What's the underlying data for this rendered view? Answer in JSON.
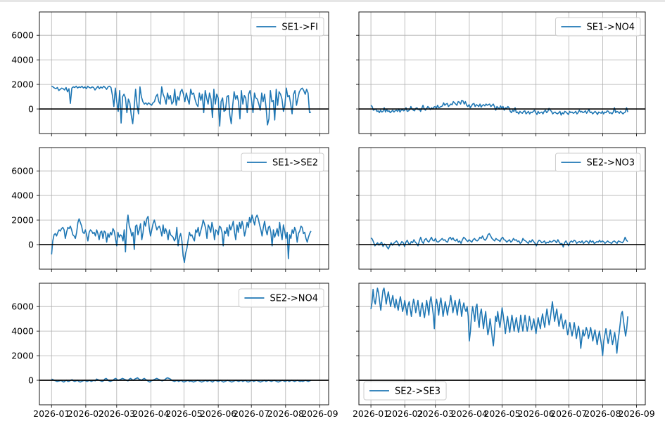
{
  "figure": {
    "series_color": "#1f77b4",
    "zero_line_color": "#000000",
    "grid": true
  },
  "x_ticks": [
    "2026-01",
    "2026-02",
    "2026-03",
    "2026-04",
    "2026-05",
    "2026-06",
    "2026-07",
    "2026-08",
    "2026-09"
  ],
  "y_ticks": [
    "0",
    "2000",
    "4000",
    "6000"
  ],
  "chart_data": [
    {
      "type": "line",
      "name": "SE1->FI",
      "legend": "upper right",
      "xlim": [
        "2025-12-21",
        "2026-09-09"
      ],
      "ylim": [
        -2000,
        7900
      ],
      "grid": true,
      "x_start": "2026-01-01",
      "x_end": "2026-08-24",
      "values": [
        1850,
        1800,
        1700,
        1650,
        1750,
        1500,
        1600,
        1700,
        1650,
        1550,
        1750,
        1400,
        1650,
        450,
        1700,
        1800,
        1750,
        1850,
        1700,
        1800,
        1750,
        1850,
        1700,
        1800,
        1650,
        1850,
        1750,
        1700,
        1800,
        1750,
        1550,
        1700,
        1850,
        1650,
        1800,
        1700,
        1850,
        1750,
        1600,
        1800,
        1850,
        1750,
        1100,
        200,
        1700,
        600,
        -200,
        1500,
        -1150,
        1000,
        1200,
        900,
        -300,
        800,
        500,
        -500,
        -1200,
        100,
        1600,
        300,
        -400,
        1800,
        1000,
        600,
        400,
        500,
        350,
        500,
        400,
        300,
        500,
        600,
        1000,
        1200,
        600,
        400,
        1800,
        1200,
        900,
        400,
        1300,
        800,
        1100,
        400,
        600,
        1600,
        300,
        1000,
        700,
        1400,
        1600,
        1200,
        600,
        1300,
        800,
        400,
        1600,
        1200,
        1300,
        800,
        400,
        200,
        1300,
        700,
        1200,
        -300,
        1500,
        900,
        400,
        1300,
        800,
        -700,
        1600,
        400,
        1200,
        900,
        -1400,
        600,
        900,
        -200,
        -100,
        1000,
        1100,
        -500,
        -1200,
        300,
        1400,
        800,
        1100,
        600,
        -800,
        1500,
        400,
        1100,
        900,
        -300,
        1200,
        1500,
        700,
        -300,
        1300,
        900,
        800,
        400,
        -100,
        1300,
        600,
        1200,
        100,
        -1300,
        -800,
        1500,
        600,
        700,
        -900,
        1600,
        300,
        1400,
        1200,
        800,
        -200,
        300,
        1700,
        1000,
        1100,
        400,
        -400,
        1200,
        1500,
        300,
        900,
        1400,
        1600,
        1700,
        1500,
        1200,
        1600,
        1300,
        -300,
        -250
      ]
    },
    {
      "type": "line",
      "name": "SE1->NO4",
      "legend": "upper right",
      "xlim": [
        "2025-12-21",
        "2026-09-09"
      ],
      "ylim": [
        -2000,
        7900
      ],
      "grid": true,
      "x_start": "2026-01-01",
      "x_end": "2026-08-24",
      "values": [
        300,
        200,
        -100,
        -50,
        0,
        -200,
        -150,
        -300,
        -100,
        -250,
        -200,
        100,
        -250,
        -50,
        -200,
        -150,
        -300,
        -200,
        -100,
        -250,
        -150,
        -100,
        -200,
        0,
        -250,
        -100,
        -50,
        -150,
        -100,
        100,
        -200,
        -150,
        -50,
        200,
        0,
        -100,
        -150,
        50,
        100,
        -50,
        0,
        -200,
        50,
        300,
        0,
        -100,
        50,
        200,
        100,
        -50,
        100,
        0,
        150,
        200,
        50,
        300,
        100,
        150,
        200,
        250,
        500,
        300,
        400,
        450,
        200,
        300,
        400,
        350,
        600,
        500,
        400,
        300,
        600,
        550,
        400,
        700,
        650,
        400,
        600,
        300,
        200,
        350,
        100,
        250,
        400,
        450,
        200,
        350,
        300,
        200,
        400,
        150,
        300,
        350,
        250,
        400,
        300,
        350,
        400,
        200,
        300,
        400,
        200,
        -100,
        200,
        100,
        0,
        250,
        50,
        200,
        -100,
        100,
        50,
        200,
        100,
        -200,
        -300,
        -100,
        -200,
        100,
        -300,
        -250,
        -400,
        -200,
        -300,
        -350,
        -200,
        -150,
        -400,
        -300,
        -200,
        -400,
        -250,
        -300,
        -200,
        -100,
        -300,
        -450,
        -200,
        -350,
        -300,
        -250,
        -400,
        -200,
        -100,
        -300,
        -200,
        50,
        -100,
        -200,
        -400,
        -300,
        -250,
        -350,
        -400,
        -300,
        -200,
        -500,
        -300,
        -400,
        -200,
        -250,
        -350,
        -450,
        -200,
        -300,
        -250,
        -350,
        -300,
        -200,
        -400,
        -300,
        -100,
        -250,
        -200,
        -300,
        -250,
        -150,
        -350,
        -200,
        -50,
        -300,
        -250,
        -400,
        -300,
        -200,
        -300,
        -450,
        -250,
        -300,
        -350,
        -200,
        -400,
        -250,
        -300,
        -150,
        -200,
        -350,
        -300,
        -400,
        -250,
        100,
        -300,
        -200,
        -250,
        -350,
        -200,
        -300,
        -400,
        -300,
        -250,
        100,
        -250
      ]
    },
    {
      "type": "line",
      "name": "SE1->SE2",
      "legend": "upper right",
      "xlim": [
        "2025-12-21",
        "2026-09-09"
      ],
      "ylim": [
        -2000,
        7900
      ],
      "grid": true,
      "x_start": "2026-01-01",
      "x_end": "2026-08-24",
      "values": [
        -800,
        300,
        800,
        900,
        700,
        1000,
        1200,
        1100,
        1300,
        1400,
        1200,
        500,
        1000,
        1400,
        1300,
        1500,
        1200,
        800,
        700,
        500,
        1000,
        1800,
        2100,
        1800,
        1500,
        1000,
        900,
        1200,
        800,
        300,
        1000,
        1200,
        1100,
        900,
        1000,
        700,
        1200,
        900,
        400,
        1000,
        1100,
        500,
        1100,
        1000,
        200,
        900,
        600,
        1000,
        800,
        1300,
        1100,
        500,
        -100,
        1000,
        600,
        800,
        700,
        300,
        1200,
        -600,
        1600,
        2400,
        1500,
        1200,
        700,
        1000,
        -400,
        1500,
        1600,
        800,
        1200,
        1700,
        400,
        1000,
        1900,
        1500,
        2100,
        2300,
        1300,
        700,
        1200,
        1700,
        2000,
        1600,
        1200,
        1400,
        1500,
        1200,
        700,
        1600,
        900,
        1300,
        1000,
        400,
        1200,
        800,
        700,
        600,
        300,
        500,
        1400,
        -100,
        600,
        900,
        300,
        -900,
        -1450,
        -700,
        -300,
        400,
        1000,
        700,
        800,
        500,
        300,
        1200,
        1000,
        1400,
        700,
        1100,
        1500,
        2000,
        1700,
        1300,
        500,
        1600,
        1400,
        1000,
        1800,
        1300,
        400,
        1200,
        1100,
        800,
        1500,
        1400,
        1000,
        -100,
        1100,
        900,
        1400,
        700,
        1600,
        1200,
        1500,
        1900,
        1000,
        400,
        1600,
        1000,
        1800,
        1300,
        1900,
        1500,
        700,
        1200,
        1800,
        1400,
        2200,
        1800,
        2400,
        2000,
        1600,
        2200,
        2400,
        2100,
        1600,
        1200,
        700,
        1400,
        1900,
        1200,
        800,
        1400,
        1500,
        1000,
        -100,
        1200,
        600,
        900,
        1300,
        700,
        1800,
        1000,
        400,
        1600,
        1100,
        500,
        1000,
        -1150,
        800,
        500,
        1200,
        900,
        1400,
        1100,
        200,
        900,
        1100,
        1500,
        1400,
        900,
        1000,
        500,
        200,
        600,
        900,
        1100
      ]
    },
    {
      "type": "line",
      "name": "SE2->NO3",
      "legend": "upper right",
      "xlim": [
        "2025-12-21",
        "2026-09-09"
      ],
      "ylim": [
        -2000,
        7900
      ],
      "grid": true,
      "x_start": "2026-01-01",
      "x_end": "2026-08-24",
      "values": [
        550,
        450,
        200,
        -100,
        50,
        150,
        -50,
        100,
        200,
        -150,
        50,
        0,
        -200,
        -350,
        -100,
        150,
        -50,
        100,
        200,
        300,
        150,
        -100,
        50,
        250,
        150,
        -150,
        200,
        350,
        100,
        0,
        250,
        150,
        400,
        200,
        100,
        -100,
        300,
        600,
        250,
        100,
        400,
        500,
        300,
        200,
        400,
        600,
        350,
        300,
        500,
        250,
        200,
        300,
        400,
        500,
        350,
        400,
        250,
        200,
        500,
        600,
        400,
        550,
        350,
        300,
        450,
        200,
        300,
        100,
        400,
        600,
        500,
        350,
        250,
        400,
        300,
        200,
        400,
        500,
        350,
        300,
        400,
        600,
        500,
        700,
        450,
        350,
        500,
        800,
        900,
        700,
        500,
        400,
        300,
        500,
        400,
        350,
        250,
        500,
        600,
        400,
        350,
        200,
        300,
        400,
        200,
        300,
        500,
        350,
        400,
        250,
        300,
        100,
        200,
        500,
        350,
        300,
        200,
        100,
        300,
        200,
        400,
        250,
        100,
        -100,
        200,
        350,
        300,
        150,
        200,
        300,
        100,
        200,
        150,
        300,
        200,
        250,
        350,
        300,
        150,
        400,
        200,
        50,
        100,
        -200,
        150,
        300,
        100,
        -100,
        200,
        300,
        200,
        350,
        300,
        100,
        200,
        250,
        150,
        300,
        100,
        200,
        300,
        250,
        100,
        350,
        200,
        300,
        100,
        150,
        250,
        200,
        350,
        200,
        300,
        250,
        100,
        200,
        300,
        200,
        150,
        100,
        250,
        300,
        200,
        100,
        300,
        250,
        200,
        150,
        300,
        600,
        350,
        250
      ]
    },
    {
      "type": "line",
      "name": "SE2->NO4",
      "legend": "upper right",
      "xlim": [
        "2025-12-21",
        "2026-09-09"
      ],
      "ylim": [
        -2000,
        7900
      ],
      "grid": true,
      "x_start": "2026-01-01",
      "x_end": "2026-08-24",
      "values": [
        100,
        50,
        0,
        -50,
        -100,
        -80,
        -50,
        0,
        -100,
        -150,
        -50,
        0,
        -100,
        -80,
        0,
        50,
        -50,
        -100,
        -50,
        0,
        -100,
        -150,
        -100,
        -50,
        0,
        -50,
        -100,
        -50,
        0,
        -100,
        -50,
        0,
        -50,
        100,
        50,
        0,
        -50,
        -100,
        -50,
        100,
        150,
        50,
        -50,
        -100,
        -50,
        0,
        100,
        150,
        50,
        0,
        50,
        100,
        150,
        100,
        50,
        0,
        -50,
        100,
        150,
        50,
        0,
        100,
        150,
        200,
        100,
        50,
        0,
        100,
        150,
        50,
        0,
        -100,
        -150,
        -50,
        0,
        50,
        100,
        150,
        100,
        50,
        0,
        -50,
        0,
        50,
        150,
        200,
        150,
        100,
        0,
        -50,
        -100,
        -50,
        0,
        -100,
        -50,
        0,
        -100,
        -150,
        -100,
        -50,
        0,
        -100,
        -50,
        -100,
        -150,
        -100,
        -50,
        0,
        -50,
        -100,
        -150,
        -100,
        -50,
        0,
        -100,
        -50,
        0,
        -100,
        -150,
        -50,
        0,
        -50,
        -100,
        -50,
        0,
        -100,
        -150,
        -100,
        -50,
        0,
        -50,
        -100,
        -150,
        -100,
        -50,
        0,
        -50,
        -100,
        -50,
        0,
        -100,
        -50,
        0,
        -100,
        -150,
        -100,
        -50,
        0,
        -100,
        -50,
        0,
        -50,
        -100,
        -150,
        -100,
        -50,
        0,
        -100,
        -50,
        0,
        -50,
        -100,
        -50,
        0,
        -50,
        -100,
        -150,
        -100,
        -50,
        0,
        -50,
        -100,
        -50,
        0,
        -100,
        -50,
        0,
        -50,
        -100,
        -50,
        0,
        -50,
        -100,
        -50,
        -100,
        -50,
        0,
        -50,
        -100,
        -50,
        0
      ]
    },
    {
      "type": "line",
      "name": "SE2->SE3",
      "legend": "lower left",
      "xlim": [
        "2025-12-21",
        "2026-09-09"
      ],
      "ylim": [
        -2000,
        7900
      ],
      "grid": true,
      "x_start": "2026-01-01",
      "x_end": "2026-08-24",
      "values": [
        5800,
        6300,
        7400,
        6500,
        6200,
        6900,
        7500,
        7100,
        6400,
        5700,
        6500,
        7300,
        7500,
        6900,
        6200,
        6800,
        7200,
        6600,
        6000,
        6500,
        6900,
        6300,
        5900,
        6600,
        6100,
        5700,
        6400,
        6800,
        6200,
        5600,
        6000,
        6500,
        5900,
        5300,
        6100,
        6400,
        5800,
        5200,
        6000,
        6600,
        6200,
        5500,
        6000,
        6500,
        5700,
        5200,
        5900,
        6300,
        5600,
        5100,
        5800,
        6500,
        5900,
        5300,
        6400,
        6800,
        6100,
        5400,
        4200,
        6000,
        6600,
        6100,
        5300,
        6200,
        6700,
        6000,
        5200,
        5800,
        6400,
        5900,
        5300,
        5900,
        6200,
        6900,
        6300,
        5500,
        6000,
        6500,
        5900,
        5300,
        6100,
        6600,
        6000,
        5200,
        5900,
        6300,
        5800,
        5600,
        6000,
        5200,
        3200,
        4000,
        5200,
        6000,
        5500,
        4800,
        5900,
        6200,
        5000,
        4300,
        5400,
        5800,
        5000,
        4200,
        5000,
        5600,
        4500,
        3700,
        4200,
        5000,
        4300,
        3500,
        2800,
        3800,
        5200,
        4800,
        5600,
        4900,
        4300,
        5000,
        5900,
        5300,
        4600,
        3800,
        4600,
        5200,
        4500,
        3900,
        4600,
        5300,
        4700,
        4000,
        4600,
        5100,
        4500,
        3900,
        4400,
        5300,
        4600,
        4000,
        4700,
        5300,
        4600,
        4000,
        4500,
        5200,
        4700,
        4100,
        4500,
        5000,
        4400,
        3800,
        4500,
        5100,
        4600,
        4200,
        4900,
        5400,
        4800,
        4300,
        5100,
        5800,
        5200,
        4500,
        5000,
        5700,
        6400,
        5600,
        4800,
        5300,
        5800,
        5100,
        4400,
        4900,
        5400,
        4800,
        4200,
        4600,
        4900,
        4300,
        3700,
        4200,
        4700,
        4100,
        3600,
        4100,
        4700,
        4100,
        3400,
        4000,
        4400,
        3800,
        2600,
        3400,
        4100,
        3600,
        3800,
        4300,
        4000,
        3400,
        3800,
        4300,
        3800,
        3200,
        3700,
        4100,
        3500,
        2900,
        3500,
        4000,
        3400,
        2800,
        2000,
        3200,
        3700,
        4200,
        3600,
        3000,
        3500,
        4100,
        3500,
        2900,
        3400,
        3900,
        3200,
        2200,
        3200,
        3800,
        4600,
        5400,
        5600,
        4900,
        4200,
        3600,
        4200,
        5200
      ]
    }
  ]
}
